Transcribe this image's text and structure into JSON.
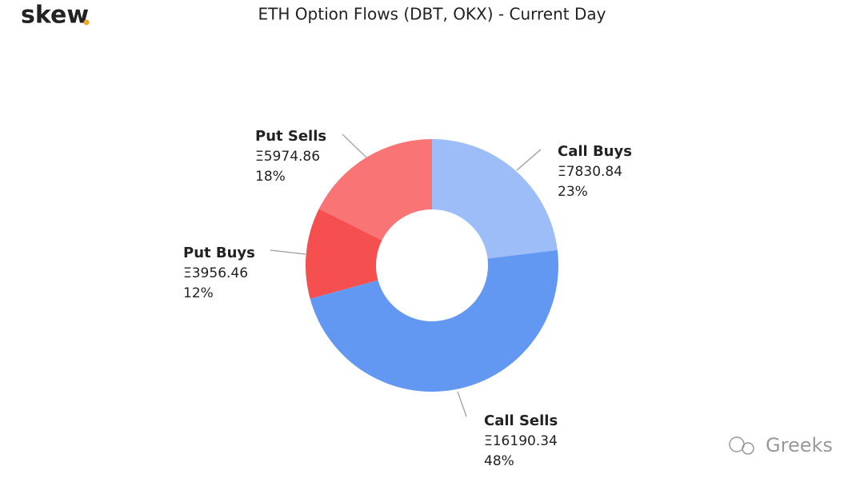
{
  "logo": "skew",
  "watermark": "Greeks",
  "chart_data": {
    "type": "donut",
    "title": "ETH Option Flows (DBT, OKX) - Current Day",
    "categories": [
      "Call Buys",
      "Call Sells",
      "Put Buys",
      "Put Sells"
    ],
    "values": [
      7830.84,
      16190.34,
      3956.46,
      5974.86
    ],
    "value_labels": [
      "Ξ7830.84",
      "Ξ16190.34",
      "Ξ3956.46",
      "Ξ5974.86"
    ],
    "percent_labels": [
      "23%",
      "48%",
      "12%",
      "18%"
    ],
    "colors": [
      "#9dbdf9",
      "#6398f2",
      "#f54f4f",
      "#f97474"
    ]
  }
}
